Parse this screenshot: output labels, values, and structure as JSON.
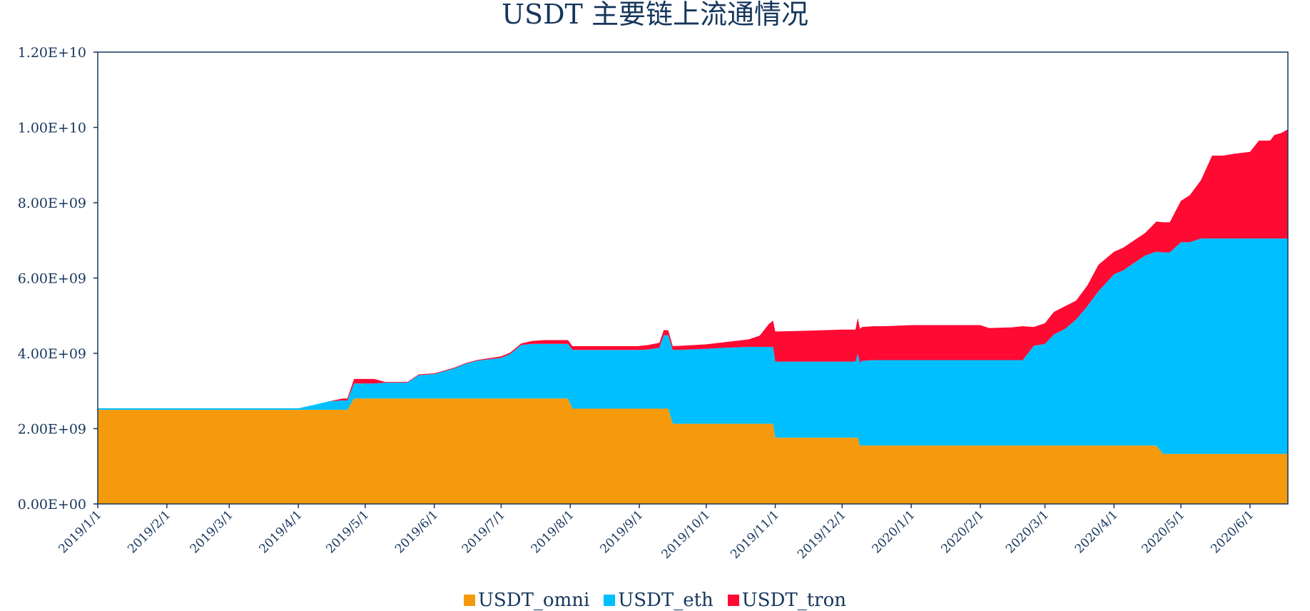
{
  "chart_data": {
    "type": "area",
    "stacked": true,
    "title": "USDT 主要链上流通情况",
    "xlabel": "",
    "ylabel": "",
    "ylim": [
      0,
      12000000000
    ],
    "yticks": [
      "0.00E+00",
      "2.00E+09",
      "4.00E+09",
      "6.00E+09",
      "8.00E+09",
      "1.00E+10",
      "1.20E+10"
    ],
    "ytick_values": [
      0,
      2000000000,
      4000000000,
      6000000000,
      8000000000,
      10000000000,
      12000000000
    ],
    "xlim": [
      "2019-01-01",
      "2020-06-18"
    ],
    "xticks": [
      "2019/1/1",
      "2019/2/1",
      "2019/3/1",
      "2019/4/1",
      "2019/5/1",
      "2019/6/1",
      "2019/7/1",
      "2019/8/1",
      "2019/9/1",
      "2019/10/1",
      "2019/11/1",
      "2019/12/1",
      "2020/1/1",
      "2020/2/1",
      "2020/3/1",
      "2020/4/1",
      "2020/5/1",
      "2020/6/1"
    ],
    "xtick_dates": [
      "2019-01-01",
      "2019-02-01",
      "2019-03-01",
      "2019-04-01",
      "2019-05-01",
      "2019-06-01",
      "2019-07-01",
      "2019-08-01",
      "2019-09-01",
      "2019-10-01",
      "2019-11-01",
      "2019-12-01",
      "2020-01-01",
      "2020-02-01",
      "2020-03-01",
      "2020-04-01",
      "2020-05-01",
      "2020-06-01"
    ],
    "grid": false,
    "legend_position": "bottom",
    "x": [
      "2019-01-01",
      "2019-04-01",
      "2019-04-08",
      "2019-04-15",
      "2019-04-21",
      "2019-04-23",
      "2019-04-26",
      "2019-05-05",
      "2019-05-10",
      "2019-05-20",
      "2019-05-25",
      "2019-06-01",
      "2019-06-10",
      "2019-06-15",
      "2019-06-20",
      "2019-07-01",
      "2019-07-05",
      "2019-07-10",
      "2019-07-15",
      "2019-07-20",
      "2019-07-31",
      "2019-08-02",
      "2019-08-15",
      "2019-08-31",
      "2019-09-05",
      "2019-09-10",
      "2019-09-12",
      "2019-09-14",
      "2019-09-16",
      "2019-09-23",
      "2019-10-01",
      "2019-10-10",
      "2019-10-20",
      "2019-10-25",
      "2019-10-29",
      "2019-10-31",
      "2019-11-01",
      "2019-11-15",
      "2019-12-01",
      "2019-12-07",
      "2019-12-08",
      "2019-12-09",
      "2019-12-10",
      "2019-12-15",
      "2019-12-20",
      "2020-01-01",
      "2020-01-15",
      "2020-02-01",
      "2020-02-05",
      "2020-02-15",
      "2020-02-20",
      "2020-02-25",
      "2020-03-01",
      "2020-03-05",
      "2020-03-10",
      "2020-03-15",
      "2020-03-20",
      "2020-03-25",
      "2020-04-01",
      "2020-04-05",
      "2020-04-10",
      "2020-04-15",
      "2020-04-20",
      "2020-04-23",
      "2020-04-26",
      "2020-05-01",
      "2020-05-05",
      "2020-05-10",
      "2020-05-15",
      "2020-05-20",
      "2020-05-25",
      "2020-06-01",
      "2020-06-05",
      "2020-06-10",
      "2020-06-12",
      "2020-06-15",
      "2020-06-18"
    ],
    "series": [
      {
        "name": "USDT_omni",
        "color": "#f59a0d",
        "values": [
          2500000000,
          2500000000,
          2500000000,
          2500000000,
          2500000000,
          2500000000,
          2800000000,
          2800000000,
          2800000000,
          2800000000,
          2800000000,
          2800000000,
          2800000000,
          2800000000,
          2800000000,
          2800000000,
          2800000000,
          2800000000,
          2800000000,
          2800000000,
          2800000000,
          2530000000,
          2530000000,
          2530000000,
          2530000000,
          2530000000,
          2530000000,
          2530000000,
          2130000000,
          2130000000,
          2130000000,
          2130000000,
          2130000000,
          2130000000,
          2130000000,
          2130000000,
          1760000000,
          1760000000,
          1760000000,
          1760000000,
          1760000000,
          1550000000,
          1550000000,
          1550000000,
          1550000000,
          1550000000,
          1550000000,
          1550000000,
          1550000000,
          1550000000,
          1550000000,
          1550000000,
          1550000000,
          1550000000,
          1550000000,
          1550000000,
          1550000000,
          1550000000,
          1550000000,
          1550000000,
          1550000000,
          1550000000,
          1550000000,
          1330000000,
          1330000000,
          1330000000,
          1330000000,
          1330000000,
          1330000000,
          1330000000,
          1330000000,
          1330000000,
          1330000000,
          1330000000,
          1330000000,
          1330000000,
          1330000000
        ]
      },
      {
        "name": "USDT_eth",
        "color": "#00bfff",
        "values": [
          40000000,
          40000000,
          130000000,
          230000000,
          250000000,
          250000000,
          400000000,
          400000000,
          420000000,
          420000000,
          620000000,
          650000000,
          800000000,
          920000000,
          1000000000,
          1080000000,
          1180000000,
          1420000000,
          1450000000,
          1450000000,
          1450000000,
          1560000000,
          1560000000,
          1560000000,
          1570000000,
          1620000000,
          1950000000,
          1950000000,
          1960000000,
          1970000000,
          1990000000,
          2020000000,
          2040000000,
          2040000000,
          2040000000,
          2040000000,
          2020000000,
          2020000000,
          2020000000,
          2020000000,
          2230000000,
          2200000000,
          2250000000,
          2270000000,
          2270000000,
          2270000000,
          2270000000,
          2270000000,
          2270000000,
          2270000000,
          2270000000,
          2650000000,
          2700000000,
          2950000000,
          3100000000,
          3350000000,
          3700000000,
          4100000000,
          4550000000,
          4650000000,
          4850000000,
          5050000000,
          5150000000,
          5350000000,
          5350000000,
          5620000000,
          5620000000,
          5720000000,
          5720000000,
          5720000000,
          5720000000,
          5720000000,
          5720000000,
          5720000000,
          5720000000,
          5720000000,
          5720000000
        ]
      },
      {
        "name": "USDT_tron",
        "color": "#ff0a33",
        "values": [
          0,
          0,
          0,
          0,
          50000000,
          50000000,
          120000000,
          120000000,
          20000000,
          20000000,
          20000000,
          20000000,
          20000000,
          20000000,
          20000000,
          40000000,
          40000000,
          40000000,
          80000000,
          100000000,
          100000000,
          100000000,
          100000000,
          100000000,
          120000000,
          130000000,
          140000000,
          130000000,
          100000000,
          110000000,
          120000000,
          150000000,
          200000000,
          300000000,
          600000000,
          700000000,
          800000000,
          820000000,
          850000000,
          850000000,
          950000000,
          900000000,
          900000000,
          900000000,
          900000000,
          930000000,
          930000000,
          930000000,
          850000000,
          870000000,
          900000000,
          500000000,
          550000000,
          600000000,
          600000000,
          500000000,
          550000000,
          700000000,
          600000000,
          600000000,
          600000000,
          600000000,
          800000000,
          800000000,
          800000000,
          1100000000,
          1250000000,
          1550000000,
          2200000000,
          2200000000,
          2250000000,
          2300000000,
          2600000000,
          2600000000,
          2750000000,
          2800000000,
          2900000000
        ]
      }
    ]
  }
}
